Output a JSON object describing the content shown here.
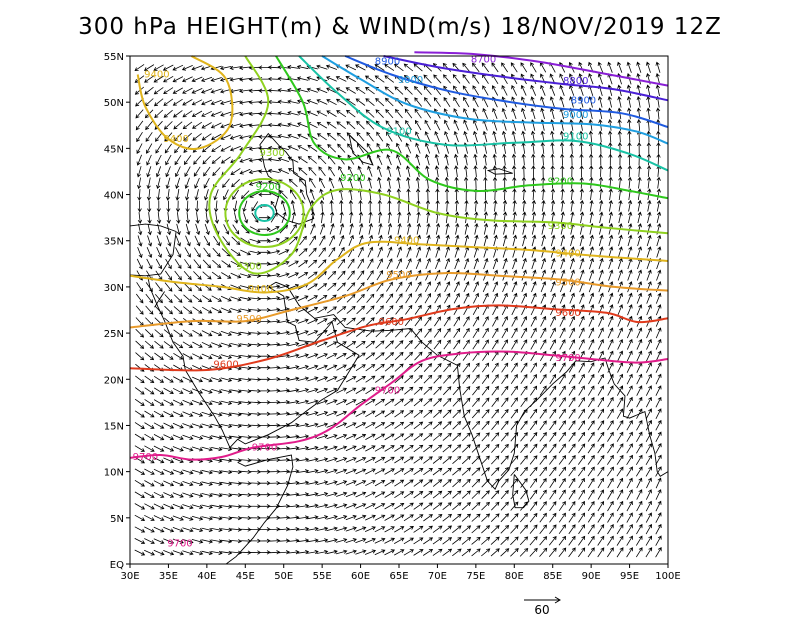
{
  "title": "300 hPa HEIGHT(m) & WIND(m/s) 18/NOV/2019 12Z",
  "map": {
    "lon_range": [
      30,
      100
    ],
    "lat_range": [
      0,
      55
    ],
    "x_ticks": [
      "30E",
      "35E",
      "40E",
      "45E",
      "50E",
      "55E",
      "60E",
      "65E",
      "70E",
      "75E",
      "80E",
      "85E",
      "90E",
      "95E",
      "100E"
    ],
    "y_ticks": [
      "EQ",
      "5N",
      "10N",
      "15N",
      "20N",
      "25N",
      "30N",
      "35N",
      "40N",
      "45N",
      "50N",
      "55N"
    ],
    "wind_grid_step_deg": 1.25,
    "reference_vector_label": "60",
    "low_center": {
      "lon": 47.5,
      "lat": 38
    }
  },
  "contours": [
    {
      "level": "8700",
      "color": "#8a1fd6",
      "lat": 52.5,
      "points": [
        [
          67,
          55.4
        ],
        [
          75,
          55.2
        ],
        [
          83,
          54.4
        ],
        [
          91,
          53.2
        ],
        [
          100,
          51.8
        ]
      ]
    },
    {
      "level": "8800",
      "color": "#4a1fd6",
      "lat": 51.5,
      "points": [
        [
          63,
          55
        ],
        [
          70,
          53.8
        ],
        [
          78,
          52.8
        ],
        [
          86,
          52
        ],
        [
          93,
          51.4
        ],
        [
          100,
          50.2
        ]
      ]
    },
    {
      "level": "8900",
      "color": "#1f5ae0",
      "lat": 50,
      "points": [
        [
          58,
          55
        ],
        [
          64,
          53
        ],
        [
          71,
          51.3
        ],
        [
          78,
          50.2
        ],
        [
          86,
          49.3
        ],
        [
          94,
          48.8
        ],
        [
          100,
          47.3
        ]
      ]
    },
    {
      "level": "9000",
      "color": "#1e9ee0",
      "lat": 48.5,
      "points": [
        [
          55,
          55
        ],
        [
          60,
          52.5
        ],
        [
          66,
          49.8
        ],
        [
          74,
          48.2
        ],
        [
          82,
          47.8
        ],
        [
          90,
          47.6
        ],
        [
          96,
          46.8
        ],
        [
          100,
          45.5
        ]
      ]
    },
    {
      "level": "9100",
      "color": "#18c2a5",
      "lat": 46.5,
      "points": [
        [
          52,
          55
        ],
        [
          57,
          51
        ],
        [
          63,
          47.2
        ],
        [
          71,
          45.4
        ],
        [
          80,
          45.6
        ],
        [
          88,
          45.8
        ],
        [
          95,
          44.4
        ],
        [
          100,
          42.6
        ]
      ]
    },
    {
      "level": "9200",
      "color": "#2ec81c",
      "lat": 41.5,
      "points": [
        [
          49,
          55
        ],
        [
          52.5,
          50
        ],
        [
          54,
          45.5
        ],
        [
          58,
          43.8
        ],
        [
          64,
          44.8
        ],
        [
          69,
          41.6
        ],
        [
          75,
          40.4
        ],
        [
          82,
          41
        ],
        [
          89,
          41.2
        ],
        [
          95,
          40.4
        ],
        [
          100,
          39.6
        ]
      ]
    },
    {
      "level": "9300",
      "color": "#8fd11f",
      "lat": 38,
      "points": [
        [
          45,
          55
        ],
        [
          48,
          50
        ],
        [
          44.5,
          44.5
        ],
        [
          40.5,
          40
        ],
        [
          41.5,
          35.5
        ],
        [
          46,
          31.5
        ],
        [
          51,
          33.5
        ],
        [
          53.5,
          38.5
        ],
        [
          57,
          40.5
        ],
        [
          63,
          40
        ],
        [
          70,
          38
        ],
        [
          77,
          37.2
        ],
        [
          85,
          37
        ],
        [
          92,
          36.4
        ],
        [
          100,
          35.8
        ]
      ]
    },
    {
      "level": "9400",
      "color": "#e0b41c",
      "lat": 34,
      "points": [
        [
          38,
          55
        ],
        [
          42.5,
          52.5
        ],
        [
          43,
          47.5
        ],
        [
          39,
          45
        ],
        [
          35,
          46
        ],
        [
          32,
          49.5
        ],
        [
          31,
          53
        ]
      ]
    },
    {
      "level": "9400",
      "color": "#e0b41c",
      "lat": 30,
      "points": [
        [
          30,
          31.2
        ],
        [
          36,
          30.5
        ],
        [
          42,
          30
        ],
        [
          47.5,
          29.4
        ],
        [
          53,
          30.3
        ],
        [
          57,
          33
        ],
        [
          61,
          34.8
        ],
        [
          68,
          34.6
        ],
        [
          75,
          34.3
        ],
        [
          82,
          34
        ],
        [
          90,
          33.4
        ],
        [
          100,
          32.8
        ]
      ]
    },
    {
      "level": "9500",
      "color": "#e89a2a",
      "lat": 28,
      "points": [
        [
          30,
          25.6
        ],
        [
          38,
          26.3
        ],
        [
          45,
          26.3
        ],
        [
          51,
          27.5
        ],
        [
          58,
          29
        ],
        [
          64,
          30.8
        ],
        [
          71,
          31.5
        ],
        [
          78,
          31.2
        ],
        [
          86,
          30.8
        ],
        [
          93,
          30
        ],
        [
          100,
          29.6
        ]
      ]
    },
    {
      "level": "9600",
      "color": "#e03a1c",
      "lat": 24,
      "points": [
        [
          30,
          21.2
        ],
        [
          40,
          21
        ],
        [
          48,
          22.2
        ],
        [
          55,
          24.2
        ],
        [
          61,
          25.8
        ],
        [
          66,
          26.5
        ],
        [
          72,
          27.6
        ],
        [
          78,
          28
        ],
        [
          85,
          27.6
        ],
        [
          92,
          27.2
        ],
        [
          96,
          26.2
        ],
        [
          100,
          26.6
        ]
      ]
    },
    {
      "level": "9700",
      "color": "#e01c8a",
      "lat": 18,
      "points": [
        [
          30,
          11.5
        ],
        [
          34,
          11.8
        ],
        [
          38,
          11.3
        ],
        [
          42,
          11.6
        ],
        [
          46,
          12.6
        ],
        [
          52,
          13.3
        ],
        [
          56,
          14.6
        ],
        [
          60,
          17.2
        ],
        [
          64,
          19.6
        ],
        [
          68,
          22
        ],
        [
          73,
          22.8
        ],
        [
          79,
          23
        ],
        [
          85,
          22.6
        ],
        [
          90,
          22.2
        ],
        [
          96,
          21.8
        ],
        [
          100,
          22.2
        ]
      ]
    }
  ],
  "contour_labels": [
    {
      "text": "8700",
      "lon": 76,
      "lat": 54.6
    },
    {
      "text": "8800",
      "lon": 88,
      "lat": 52.3
    },
    {
      "text": "8900",
      "lon": 63.5,
      "lat": 54.4
    },
    {
      "text": "8900",
      "lon": 89,
      "lat": 50.2
    },
    {
      "text": "9000",
      "lon": 66.5,
      "lat": 52.4
    },
    {
      "text": "9000",
      "lon": 88,
      "lat": 48.6
    },
    {
      "text": "9100",
      "lon": 65,
      "lat": 46.8
    },
    {
      "text": "9100",
      "lon": 88,
      "lat": 46.3
    },
    {
      "text": "9200",
      "lon": 59,
      "lat": 41.8
    },
    {
      "text": "9200",
      "lon": 86,
      "lat": 41.4
    },
    {
      "text": "9200",
      "lon": 48,
      "lat": 40.8
    },
    {
      "text": "9300",
      "lon": 48.5,
      "lat": 44.5
    },
    {
      "text": "9300",
      "lon": 86,
      "lat": 36.6
    },
    {
      "text": "9300",
      "lon": 45.5,
      "lat": 32.2
    },
    {
      "text": "9400",
      "lon": 33.5,
      "lat": 53
    },
    {
      "text": "9400",
      "lon": 36,
      "lat": 46
    },
    {
      "text": "9400",
      "lon": 66,
      "lat": 35
    },
    {
      "text": "9400",
      "lon": 87,
      "lat": 33.6
    },
    {
      "text": "9400",
      "lon": 47,
      "lat": 29.8
    },
    {
      "text": "9500",
      "lon": 65,
      "lat": 31.3
    },
    {
      "text": "9500",
      "lon": 87,
      "lat": 30.5
    },
    {
      "text": "9500",
      "lon": 45.5,
      "lat": 26.5
    },
    {
      "text": "9600",
      "lon": 64,
      "lat": 26.2
    },
    {
      "text": "9600",
      "lon": 87,
      "lat": 27.2
    },
    {
      "text": "9600",
      "lon": 42.5,
      "lat": 21.6
    },
    {
      "text": "9700",
      "lon": 87,
      "lat": 22.3
    },
    {
      "text": "9700",
      "lon": 63.5,
      "lat": 18.8
    },
    {
      "text": "9700",
      "lon": 47.5,
      "lat": 12.6
    },
    {
      "text": "9700",
      "lon": 32,
      "lat": 11.6
    },
    {
      "text": "9700",
      "lon": 36.5,
      "lat": 2.2
    }
  ]
}
